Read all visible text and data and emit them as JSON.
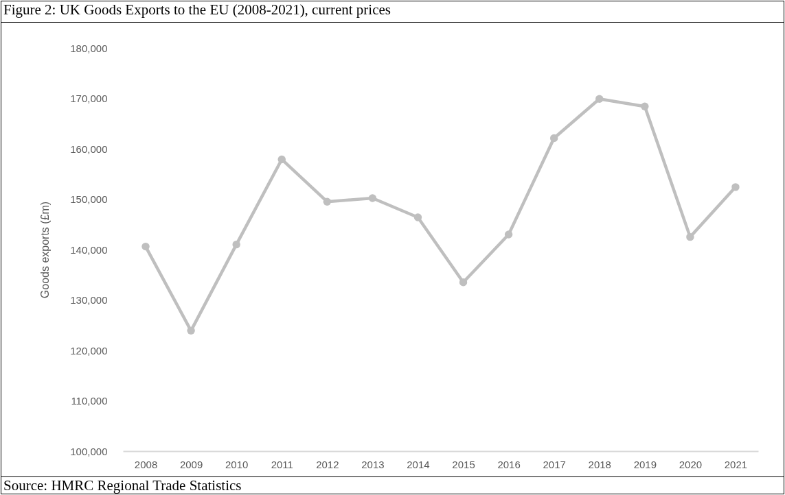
{
  "chart_data": {
    "type": "line",
    "title": "Figure 2: UK Goods Exports to the EU (2008-2021), current prices",
    "ylabel": "Goods exports (£m)",
    "annotations": [
      "Source: HMRC Regional Trade Statistics"
    ],
    "categories": [
      "2008",
      "2009",
      "2010",
      "2011",
      "2012",
      "2013",
      "2014",
      "2015",
      "2016",
      "2017",
      "2018",
      "2019",
      "2020",
      "2021"
    ],
    "series": [
      {
        "color": "#bfbfbf",
        "values": [
          140600,
          123900,
          141000,
          157900,
          149500,
          150200,
          146400,
          133500,
          143000,
          162100,
          169900,
          168400,
          142500,
          152400
        ]
      }
    ],
    "ylim": [
      100000,
      180000
    ],
    "yticks": [
      {
        "value": 100000,
        "label": "100,000"
      },
      {
        "value": 110000,
        "label": "110,000"
      },
      {
        "value": 120000,
        "label": "120,000"
      },
      {
        "value": 130000,
        "label": "130,000"
      },
      {
        "value": 140000,
        "label": "140,000"
      },
      {
        "value": 150000,
        "label": "150,000"
      },
      {
        "value": 160000,
        "label": "160,000"
      },
      {
        "value": 170000,
        "label": "170,000"
      },
      {
        "value": 180000,
        "label": "180,000"
      }
    ],
    "marker": "circle",
    "line_style": "solid"
  }
}
